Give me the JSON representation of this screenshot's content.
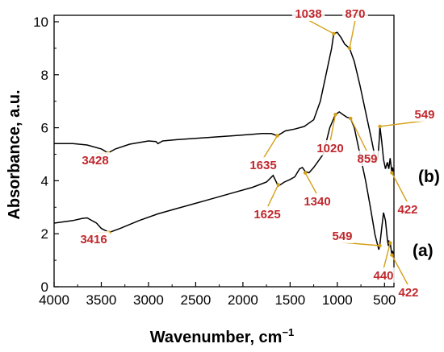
{
  "chart_data": {
    "type": "line",
    "xlabel": "Wavenumber, cm",
    "xlabel_sup": "−1",
    "ylabel": "Absorbance, a.u.",
    "xlim": [
      4000,
      400
    ],
    "ylim": [
      0,
      10
    ],
    "x_reversed": true,
    "x_ticks": [
      4000,
      3500,
      3000,
      2500,
      2000,
      1500,
      1000,
      500
    ],
    "y_ticks": [
      0,
      2,
      4,
      6,
      8,
      10
    ],
    "grid": false,
    "colors": {
      "line": "#000000",
      "annotation": "#c0282d",
      "arrow": "#d4a017"
    },
    "series": [
      {
        "name": "(b)",
        "x": [
          4000,
          3800,
          3650,
          3500,
          3428,
          3350,
          3200,
          3000,
          2920,
          2900,
          2850,
          2700,
          2500,
          2300,
          2100,
          1900,
          1800,
          1700,
          1635,
          1550,
          1450,
          1350,
          1250,
          1180,
          1120,
          1060,
          1038,
          1000,
          960,
          920,
          870,
          820,
          760,
          700,
          640,
          590,
          570,
          555,
          549,
          530,
          510,
          490,
          470,
          455,
          440,
          430,
          422,
          415,
          405
        ],
        "y": [
          5.4,
          5.4,
          5.35,
          5.2,
          5.05,
          5.2,
          5.38,
          5.5,
          5.48,
          5.4,
          5.5,
          5.55,
          5.6,
          5.65,
          5.7,
          5.75,
          5.78,
          5.78,
          5.7,
          5.88,
          5.95,
          6.05,
          6.3,
          7.0,
          8.0,
          9.0,
          9.55,
          9.6,
          9.4,
          9.15,
          9.0,
          8.5,
          7.6,
          6.6,
          5.6,
          4.7,
          4.85,
          5.6,
          6.05,
          5.5,
          4.8,
          4.45,
          4.7,
          4.45,
          4.85,
          4.55,
          4.3,
          4.5,
          4.35
        ]
      },
      {
        "name": "(a)",
        "x": [
          4000,
          3900,
          3800,
          3700,
          3650,
          3550,
          3500,
          3416,
          3300,
          3100,
          2900,
          2700,
          2500,
          2300,
          2100,
          1900,
          1750,
          1680,
          1625,
          1560,
          1500,
          1450,
          1400,
          1370,
          1340,
          1300,
          1250,
          1150,
          1080,
          1020,
          980,
          940,
          900,
          859,
          820,
          760,
          700,
          650,
          600,
          560,
          549,
          530,
          510,
          490,
          470,
          460,
          455,
          450,
          440,
          430,
          422,
          415,
          408
        ],
        "y": [
          2.4,
          2.45,
          2.5,
          2.58,
          2.6,
          2.4,
          2.2,
          2.05,
          2.2,
          2.5,
          2.75,
          2.95,
          3.15,
          3.35,
          3.55,
          3.75,
          3.95,
          4.2,
          3.8,
          3.95,
          4.05,
          4.15,
          4.45,
          4.5,
          4.35,
          4.3,
          4.5,
          5.0,
          6.0,
          6.5,
          6.6,
          6.5,
          6.4,
          6.35,
          6.0,
          5.0,
          4.0,
          3.0,
          1.95,
          1.4,
          1.6,
          2.2,
          2.8,
          2.5,
          1.8,
          1.55,
          1.75,
          1.5,
          1.7,
          1.4,
          1.2,
          1.35,
          1.25
        ]
      }
    ],
    "annotations": [
      {
        "text": "1038"
      },
      {
        "text": "870"
      },
      {
        "text": "549"
      },
      {
        "text": "3428"
      },
      {
        "text": "1635"
      },
      {
        "text": "1020"
      },
      {
        "text": "859"
      },
      {
        "text": "1625"
      },
      {
        "text": "1340"
      },
      {
        "text": "422"
      },
      {
        "text": "3416"
      },
      {
        "text": "549"
      },
      {
        "text": "440"
      },
      {
        "text": "422"
      }
    ]
  }
}
